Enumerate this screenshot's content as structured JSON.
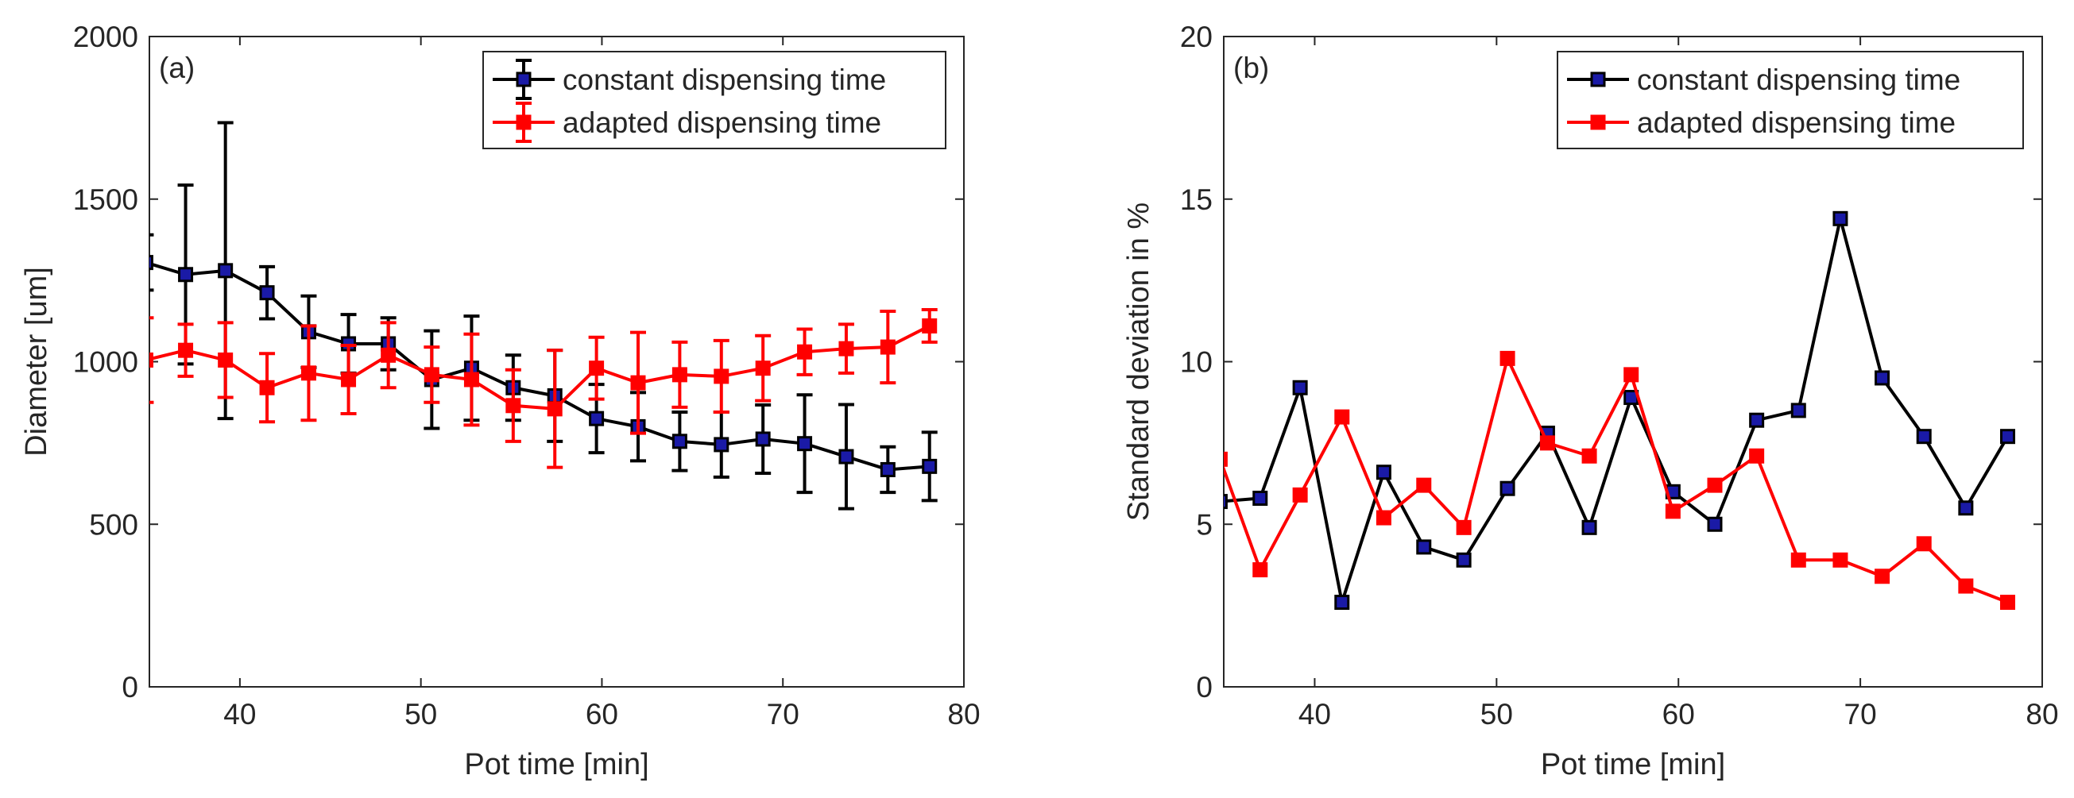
{
  "chart_data": [
    {
      "type": "line",
      "panel_label": "(a)",
      "xlabel": "Pot time [min]",
      "ylabel": "Diameter [um]",
      "xlim": [
        35,
        80
      ],
      "ylim": [
        0,
        2000
      ],
      "xticks": [
        40,
        50,
        60,
        70,
        80
      ],
      "yticks": [
        0,
        500,
        1000,
        1500,
        2000
      ],
      "legend_position": "top-right",
      "series": [
        {
          "name": "constant dispensing time",
          "line_color": "#000000",
          "marker_fill": "#1a1aa6",
          "x": [
            34.8,
            37.0,
            39.2,
            41.5,
            43.8,
            46.0,
            48.2,
            50.6,
            52.8,
            55.1,
            57.4,
            59.7,
            62.0,
            64.3,
            66.6,
            68.9,
            71.2,
            73.5,
            75.8,
            78.1
          ],
          "y": [
            1305,
            1268,
            1280,
            1212,
            1092,
            1055,
            1055,
            945,
            980,
            920,
            895,
            825,
            800,
            755,
            745,
            762,
            748,
            708,
            668,
            678
          ],
          "err": [
            85,
            275,
            455,
            80,
            110,
            90,
            80,
            150,
            160,
            100,
            140,
            105,
            105,
            90,
            100,
            105,
            150,
            160,
            70,
            105
          ]
        },
        {
          "name": "adapted dispensing time",
          "line_color": "#ff0000",
          "marker_fill": "#ff0000",
          "x": [
            34.8,
            37.0,
            39.2,
            41.5,
            43.8,
            46.0,
            48.2,
            50.6,
            52.8,
            55.1,
            57.4,
            59.7,
            62.0,
            64.3,
            66.6,
            68.9,
            71.2,
            73.5,
            75.8,
            78.1
          ],
          "y": [
            1005,
            1035,
            1005,
            920,
            965,
            945,
            1020,
            960,
            945,
            865,
            855,
            980,
            935,
            960,
            955,
            980,
            1030,
            1040,
            1045,
            1110
          ],
          "err": [
            130,
            80,
            115,
            105,
            145,
            105,
            100,
            85,
            140,
            110,
            180,
            95,
            155,
            100,
            110,
            100,
            70,
            75,
            110,
            50
          ]
        }
      ]
    },
    {
      "type": "line",
      "panel_label": "(b)",
      "xlabel": "Pot time [min]",
      "ylabel": "Standard deviation in %",
      "xlim": [
        35,
        80
      ],
      "ylim": [
        0,
        20
      ],
      "xticks": [
        40,
        50,
        60,
        70,
        80
      ],
      "yticks": [
        0,
        5,
        10,
        15,
        20
      ],
      "legend_position": "top-right",
      "series": [
        {
          "name": "constant dispensing time",
          "line_color": "#000000",
          "marker_fill": "#1a1aa6",
          "x": [
            34.8,
            37.0,
            39.2,
            41.5,
            43.8,
            46.0,
            48.2,
            50.6,
            52.8,
            55.1,
            57.4,
            59.7,
            62.0,
            64.3,
            66.6,
            68.9,
            71.2,
            73.5,
            75.8,
            78.1
          ],
          "y": [
            5.7,
            5.8,
            9.2,
            2.6,
            6.6,
            4.3,
            3.9,
            6.1,
            7.8,
            4.9,
            8.9,
            6.0,
            5.0,
            8.2,
            8.5,
            14.4,
            9.5,
            7.7,
            5.5,
            7.7
          ]
        },
        {
          "name": "adapted dispensing time",
          "line_color": "#ff0000",
          "marker_fill": "#ff0000",
          "x": [
            34.8,
            37.0,
            39.2,
            41.5,
            43.8,
            46.0,
            48.2,
            50.6,
            52.8,
            55.1,
            57.4,
            59.7,
            62.0,
            64.3,
            66.6,
            68.9,
            71.2,
            73.5,
            75.8,
            78.1
          ],
          "y": [
            7.0,
            3.6,
            5.9,
            8.3,
            5.2,
            6.2,
            4.9,
            10.1,
            7.5,
            7.1,
            9.6,
            5.4,
            6.2,
            7.1,
            3.9,
            3.9,
            3.4,
            4.4,
            3.1,
            2.6
          ]
        }
      ]
    }
  ]
}
